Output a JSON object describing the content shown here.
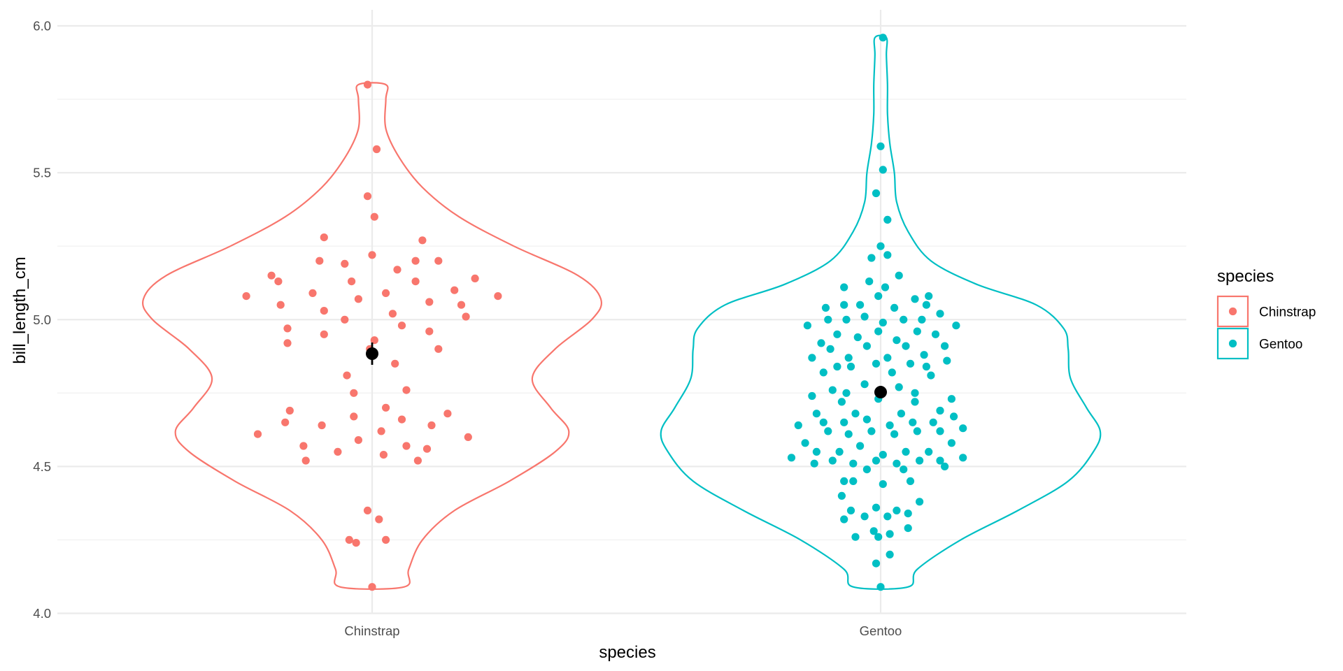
{
  "chart_data": {
    "type": "scatter",
    "subtype": "violin with jittered points and mean ± standard error",
    "xlabel": "species",
    "ylabel": "bill_length_cm",
    "categories": [
      "Chinstrap",
      "Gentoo"
    ],
    "ylim": [
      4.0,
      6.0
    ],
    "yticks": [
      "4.0",
      "4.5",
      "5.0",
      "5.5",
      "6.0"
    ],
    "grid": true,
    "legend": {
      "title": "species",
      "position": "right",
      "entries": [
        "Chinstrap",
        "Gentoo"
      ]
    },
    "colors": {
      "Chinstrap": "#F8766D",
      "Gentoo": "#00BFC4",
      "summary": "#000000"
    },
    "series": [
      {
        "name": "Chinstrap",
        "violin": {
          "min": 4.09,
          "max": 5.8,
          "width_profile": [
            [
              4.09,
              0.14
            ],
            [
              4.15,
              0.16
            ],
            [
              4.25,
              0.22
            ],
            [
              4.35,
              0.36
            ],
            [
              4.45,
              0.6
            ],
            [
              4.55,
              0.8
            ],
            [
              4.62,
              0.86
            ],
            [
              4.7,
              0.78
            ],
            [
              4.8,
              0.7
            ],
            [
              4.9,
              0.8
            ],
            [
              5.0,
              0.96
            ],
            [
              5.07,
              1.0
            ],
            [
              5.15,
              0.9
            ],
            [
              5.25,
              0.62
            ],
            [
              5.35,
              0.38
            ],
            [
              5.45,
              0.22
            ],
            [
              5.55,
              0.12
            ],
            [
              5.65,
              0.06
            ],
            [
              5.75,
              0.06
            ],
            [
              5.8,
              0.06
            ]
          ]
        },
        "points": [
          [
            -0.55,
            5.08
          ],
          [
            -0.5,
            4.61
          ],
          [
            -0.44,
            5.15
          ],
          [
            -0.41,
            5.13
          ],
          [
            -0.4,
            5.05
          ],
          [
            -0.37,
            4.97
          ],
          [
            -0.37,
            4.92
          ],
          [
            -0.36,
            4.69
          ],
          [
            -0.38,
            4.65
          ],
          [
            -0.3,
            4.57
          ],
          [
            -0.29,
            4.52
          ],
          [
            -0.26,
            5.09
          ],
          [
            -0.23,
            5.2
          ],
          [
            -0.21,
            5.28
          ],
          [
            -0.21,
            5.03
          ],
          [
            -0.21,
            4.95
          ],
          [
            -0.22,
            4.64
          ],
          [
            -0.15,
            4.55
          ],
          [
            -0.12,
            5.19
          ],
          [
            -0.12,
            5.0
          ],
          [
            -0.11,
            4.81
          ],
          [
            -0.09,
            5.13
          ],
          [
            -0.08,
            4.75
          ],
          [
            -0.08,
            4.67
          ],
          [
            -0.06,
            5.07
          ],
          [
            -0.06,
            4.59
          ],
          [
            -0.1,
            4.25
          ],
          [
            -0.07,
            4.24
          ],
          [
            -0.02,
            5.42
          ],
          [
            -0.02,
            4.35
          ],
          [
            -0.02,
            5.8
          ],
          [
            -0.01,
            4.9
          ],
          [
            0.0,
            5.22
          ],
          [
            0.0,
            4.09
          ],
          [
            0.01,
            5.35
          ],
          [
            0.01,
            4.93
          ],
          [
            0.02,
            5.58
          ],
          [
            0.03,
            4.32
          ],
          [
            0.04,
            4.62
          ],
          [
            0.05,
            4.54
          ],
          [
            0.06,
            5.09
          ],
          [
            0.06,
            4.7
          ],
          [
            0.06,
            4.25
          ],
          [
            0.09,
            5.02
          ],
          [
            0.1,
            4.85
          ],
          [
            0.11,
            5.17
          ],
          [
            0.13,
            4.98
          ],
          [
            0.13,
            4.66
          ],
          [
            0.15,
            4.76
          ],
          [
            0.15,
            4.57
          ],
          [
            0.19,
            5.2
          ],
          [
            0.19,
            5.13
          ],
          [
            0.2,
            4.52
          ],
          [
            0.22,
            5.27
          ],
          [
            0.25,
            5.06
          ],
          [
            0.25,
            4.96
          ],
          [
            0.24,
            4.56
          ],
          [
            0.26,
            4.64
          ],
          [
            0.29,
            5.2
          ],
          [
            0.29,
            4.9
          ],
          [
            0.33,
            4.68
          ],
          [
            0.36,
            5.1
          ],
          [
            0.39,
            5.05
          ],
          [
            0.41,
            5.01
          ],
          [
            0.42,
            4.6
          ],
          [
            0.45,
            5.14
          ],
          [
            0.55,
            5.08
          ]
        ],
        "mean": 4.884,
        "se_range": [
          4.846,
          4.922
        ]
      },
      {
        "name": "Gentoo",
        "violin": {
          "min": 4.09,
          "max": 5.96,
          "width_profile": [
            [
              4.09,
              0.12
            ],
            [
              4.15,
              0.16
            ],
            [
              4.25,
              0.35
            ],
            [
              4.35,
              0.6
            ],
            [
              4.45,
              0.82
            ],
            [
              4.55,
              0.93
            ],
            [
              4.62,
              0.96
            ],
            [
              4.7,
              0.9
            ],
            [
              4.8,
              0.83
            ],
            [
              4.9,
              0.82
            ],
            [
              4.97,
              0.8
            ],
            [
              5.05,
              0.68
            ],
            [
              5.12,
              0.42
            ],
            [
              5.2,
              0.22
            ],
            [
              5.3,
              0.12
            ],
            [
              5.4,
              0.07
            ],
            [
              5.5,
              0.06
            ],
            [
              5.6,
              0.04
            ],
            [
              5.7,
              0.03
            ],
            [
              5.8,
              0.03
            ],
            [
              5.9,
              0.025
            ],
            [
              5.96,
              0.025
            ]
          ]
        },
        "points": [
          [
            -0.39,
            4.53
          ],
          [
            -0.36,
            4.64
          ],
          [
            -0.33,
            4.58
          ],
          [
            -0.32,
            4.98
          ],
          [
            -0.3,
            4.87
          ],
          [
            -0.3,
            4.74
          ],
          [
            -0.29,
            4.51
          ],
          [
            -0.28,
            4.68
          ],
          [
            -0.28,
            4.55
          ],
          [
            -0.26,
            4.92
          ],
          [
            -0.25,
            4.82
          ],
          [
            -0.25,
            4.65
          ],
          [
            -0.24,
            5.04
          ],
          [
            -0.23,
            5.0
          ],
          [
            -0.23,
            4.62
          ],
          [
            -0.22,
            4.9
          ],
          [
            -0.21,
            4.76
          ],
          [
            -0.21,
            4.52
          ],
          [
            -0.19,
            4.84
          ],
          [
            -0.19,
            4.95
          ],
          [
            -0.18,
            4.55
          ],
          [
            -0.17,
            4.72
          ],
          [
            -0.17,
            4.4
          ],
          [
            -0.16,
            5.05
          ],
          [
            -0.16,
            5.11
          ],
          [
            -0.16,
            4.65
          ],
          [
            -0.16,
            4.45
          ],
          [
            -0.16,
            4.32
          ],
          [
            -0.15,
            5.0
          ],
          [
            -0.15,
            4.75
          ],
          [
            -0.14,
            4.87
          ],
          [
            -0.14,
            4.61
          ],
          [
            -0.13,
            4.84
          ],
          [
            -0.13,
            4.35
          ],
          [
            -0.12,
            4.51
          ],
          [
            -0.12,
            4.45
          ],
          [
            -0.11,
            4.68
          ],
          [
            -0.11,
            4.26
          ],
          [
            -0.1,
            4.94
          ],
          [
            -0.09,
            5.05
          ],
          [
            -0.09,
            4.57
          ],
          [
            -0.07,
            5.01
          ],
          [
            -0.07,
            4.78
          ],
          [
            -0.07,
            4.33
          ],
          [
            -0.06,
            4.91
          ],
          [
            -0.06,
            4.66
          ],
          [
            -0.06,
            4.49
          ],
          [
            -0.05,
            5.13
          ],
          [
            -0.04,
            5.21
          ],
          [
            -0.04,
            4.62
          ],
          [
            -0.03,
            4.28
          ],
          [
            -0.02,
            5.43
          ],
          [
            -0.02,
            4.85
          ],
          [
            -0.02,
            4.52
          ],
          [
            -0.02,
            4.36
          ],
          [
            -0.02,
            4.17
          ],
          [
            -0.01,
            5.08
          ],
          [
            -0.01,
            4.96
          ],
          [
            -0.01,
            4.73
          ],
          [
            -0.01,
            4.26
          ],
          [
            0.0,
            5.59
          ],
          [
            0.0,
            5.25
          ],
          [
            0.0,
            4.09
          ],
          [
            0.01,
            5.96
          ],
          [
            0.01,
            4.99
          ],
          [
            0.01,
            4.54
          ],
          [
            0.01,
            4.44
          ],
          [
            0.01,
            5.51
          ],
          [
            0.02,
            5.11
          ],
          [
            0.03,
            5.34
          ],
          [
            0.03,
            5.22
          ],
          [
            0.03,
            4.87
          ],
          [
            0.03,
            4.33
          ],
          [
            0.04,
            4.2
          ],
          [
            0.04,
            4.64
          ],
          [
            0.04,
            4.27
          ],
          [
            0.05,
            4.82
          ],
          [
            0.06,
            5.04
          ],
          [
            0.06,
            4.61
          ],
          [
            0.07,
            4.51
          ],
          [
            0.07,
            4.35
          ],
          [
            0.07,
            4.93
          ],
          [
            0.08,
            5.15
          ],
          [
            0.08,
            4.77
          ],
          [
            0.09,
            4.68
          ],
          [
            0.1,
            5.0
          ],
          [
            0.1,
            4.49
          ],
          [
            0.11,
            4.91
          ],
          [
            0.11,
            4.55
          ],
          [
            0.12,
            4.34
          ],
          [
            0.12,
            4.29
          ],
          [
            0.13,
            4.85
          ],
          [
            0.13,
            4.45
          ],
          [
            0.14,
            4.65
          ],
          [
            0.15,
            5.07
          ],
          [
            0.16,
            4.96
          ],
          [
            0.15,
            4.75
          ],
          [
            0.15,
            4.72
          ],
          [
            0.16,
            4.62
          ],
          [
            0.17,
            4.38
          ],
          [
            0.17,
            4.52
          ],
          [
            0.18,
            5.0
          ],
          [
            0.19,
            4.88
          ],
          [
            0.2,
            5.05
          ],
          [
            0.2,
            4.84
          ],
          [
            0.21,
            5.08
          ],
          [
            0.21,
            4.55
          ],
          [
            0.22,
            4.81
          ],
          [
            0.23,
            4.65
          ],
          [
            0.24,
            4.95
          ],
          [
            0.26,
            5.02
          ],
          [
            0.26,
            4.69
          ],
          [
            0.26,
            4.62
          ],
          [
            0.26,
            4.52
          ],
          [
            0.28,
            4.91
          ],
          [
            0.28,
            4.5
          ],
          [
            0.29,
            4.86
          ],
          [
            0.31,
            4.73
          ],
          [
            0.31,
            4.58
          ],
          [
            0.32,
            4.67
          ],
          [
            0.33,
            4.98
          ],
          [
            0.36,
            4.63
          ],
          [
            0.36,
            4.53
          ]
        ],
        "mean": 4.753,
        "se_range": [
          4.733,
          4.773
        ]
      }
    ]
  }
}
